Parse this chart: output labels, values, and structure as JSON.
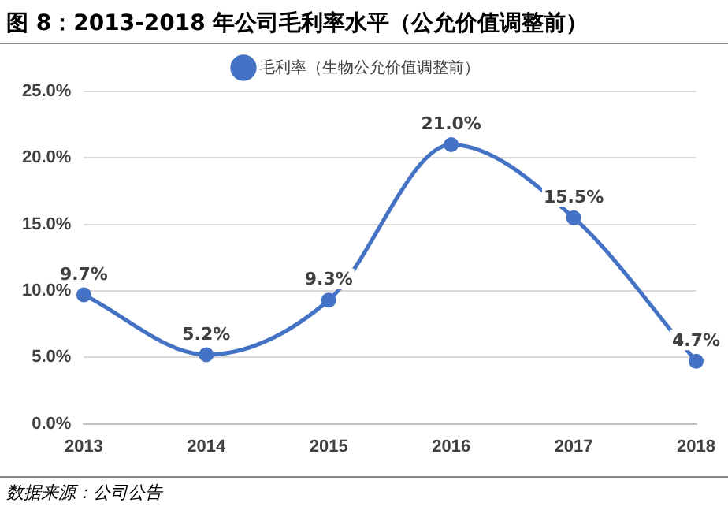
{
  "chart_data": {
    "type": "line",
    "title": "图 8：2013-2018 年公司毛利率水平（公允价值调整前）",
    "categories": [
      "2013",
      "2014",
      "2015",
      "2016",
      "2017",
      "2018"
    ],
    "series": [
      {
        "name": "毛利率（生物公允价值调整前）",
        "color": "#4472c4",
        "values": [
          9.7,
          5.2,
          9.3,
          21.0,
          15.5,
          4.7
        ],
        "value_labels": [
          "9.7%",
          "5.2%",
          "9.3%",
          "21.0%",
          "15.5%",
          "4.7%"
        ]
      }
    ],
    "ylim": [
      0,
      25
    ],
    "yticks": [
      {
        "value": 0,
        "label": "0.0%"
      },
      {
        "value": 5,
        "label": "5.0%"
      },
      {
        "value": 10,
        "label": "10.0%"
      },
      {
        "value": 15,
        "label": "15.0%"
      },
      {
        "value": 20,
        "label": "20.0%"
      },
      {
        "value": 25,
        "label": "25.0%"
      }
    ],
    "grid": "y",
    "legend": "top",
    "marker": "circle",
    "line_style": "solid",
    "annotations": [
      "数据来源：公司公告"
    ]
  }
}
